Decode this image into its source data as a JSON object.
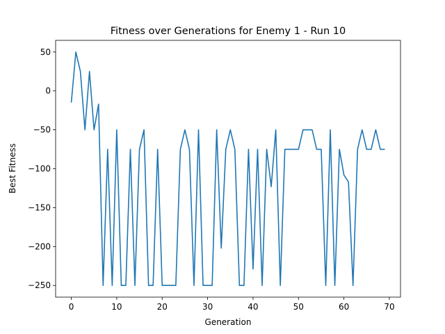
{
  "chart_data": {
    "type": "line",
    "title": "Fitness over Generations for Enemy 1 - Run 10",
    "xlabel": "Generation",
    "ylabel": "Best Fitness",
    "xlim": [
      -3.45,
      72.45
    ],
    "ylim": [
      -265,
      65
    ],
    "xticks": [
      0,
      10,
      20,
      30,
      40,
      50,
      60,
      70
    ],
    "yticks": [
      50,
      0,
      -50,
      -100,
      -150,
      -200,
      -250
    ],
    "ytick_labels": [
      "50",
      "0",
      "−50",
      "−100",
      "−150",
      "−200",
      "−250"
    ],
    "grid": false,
    "series": [
      {
        "color": "#1f77b4",
        "x": [
          0,
          1,
          2,
          3,
          4,
          5,
          6,
          7,
          8,
          9,
          10,
          11,
          12,
          13,
          14,
          15,
          16,
          17,
          18,
          19,
          20,
          21,
          22,
          23,
          24,
          25,
          26,
          27,
          28,
          29,
          30,
          31,
          32,
          33,
          34,
          35,
          36,
          37,
          38,
          39,
          40,
          41,
          42,
          43,
          44,
          45,
          46,
          47,
          48,
          49,
          50,
          51,
          52,
          53,
          54,
          55,
          56,
          57,
          58,
          59,
          60,
          61,
          62,
          63,
          64,
          65,
          66,
          67,
          68,
          69
        ],
        "values": [
          -15,
          50,
          25,
          -50,
          25,
          -50,
          -17,
          -250,
          -75,
          -250,
          -50,
          -250,
          -250,
          -75,
          -250,
          -75,
          -50,
          -250,
          -250,
          -75,
          -250,
          -250,
          -250,
          -250,
          -75,
          -50,
          -75,
          -250,
          -50,
          -250,
          -250,
          -250,
          -50,
          -202,
          -75,
          -50,
          -75,
          -250,
          -250,
          -75,
          -229,
          -75,
          -250,
          -75,
          -123,
          -50,
          -250,
          -75,
          -75,
          -75,
          -75,
          -50,
          -50,
          -50,
          -75,
          -75,
          -250,
          -50,
          -250,
          -75,
          -108,
          -117,
          -250,
          -75,
          -50,
          -75,
          -75,
          -50,
          -75,
          -75
        ]
      }
    ]
  }
}
